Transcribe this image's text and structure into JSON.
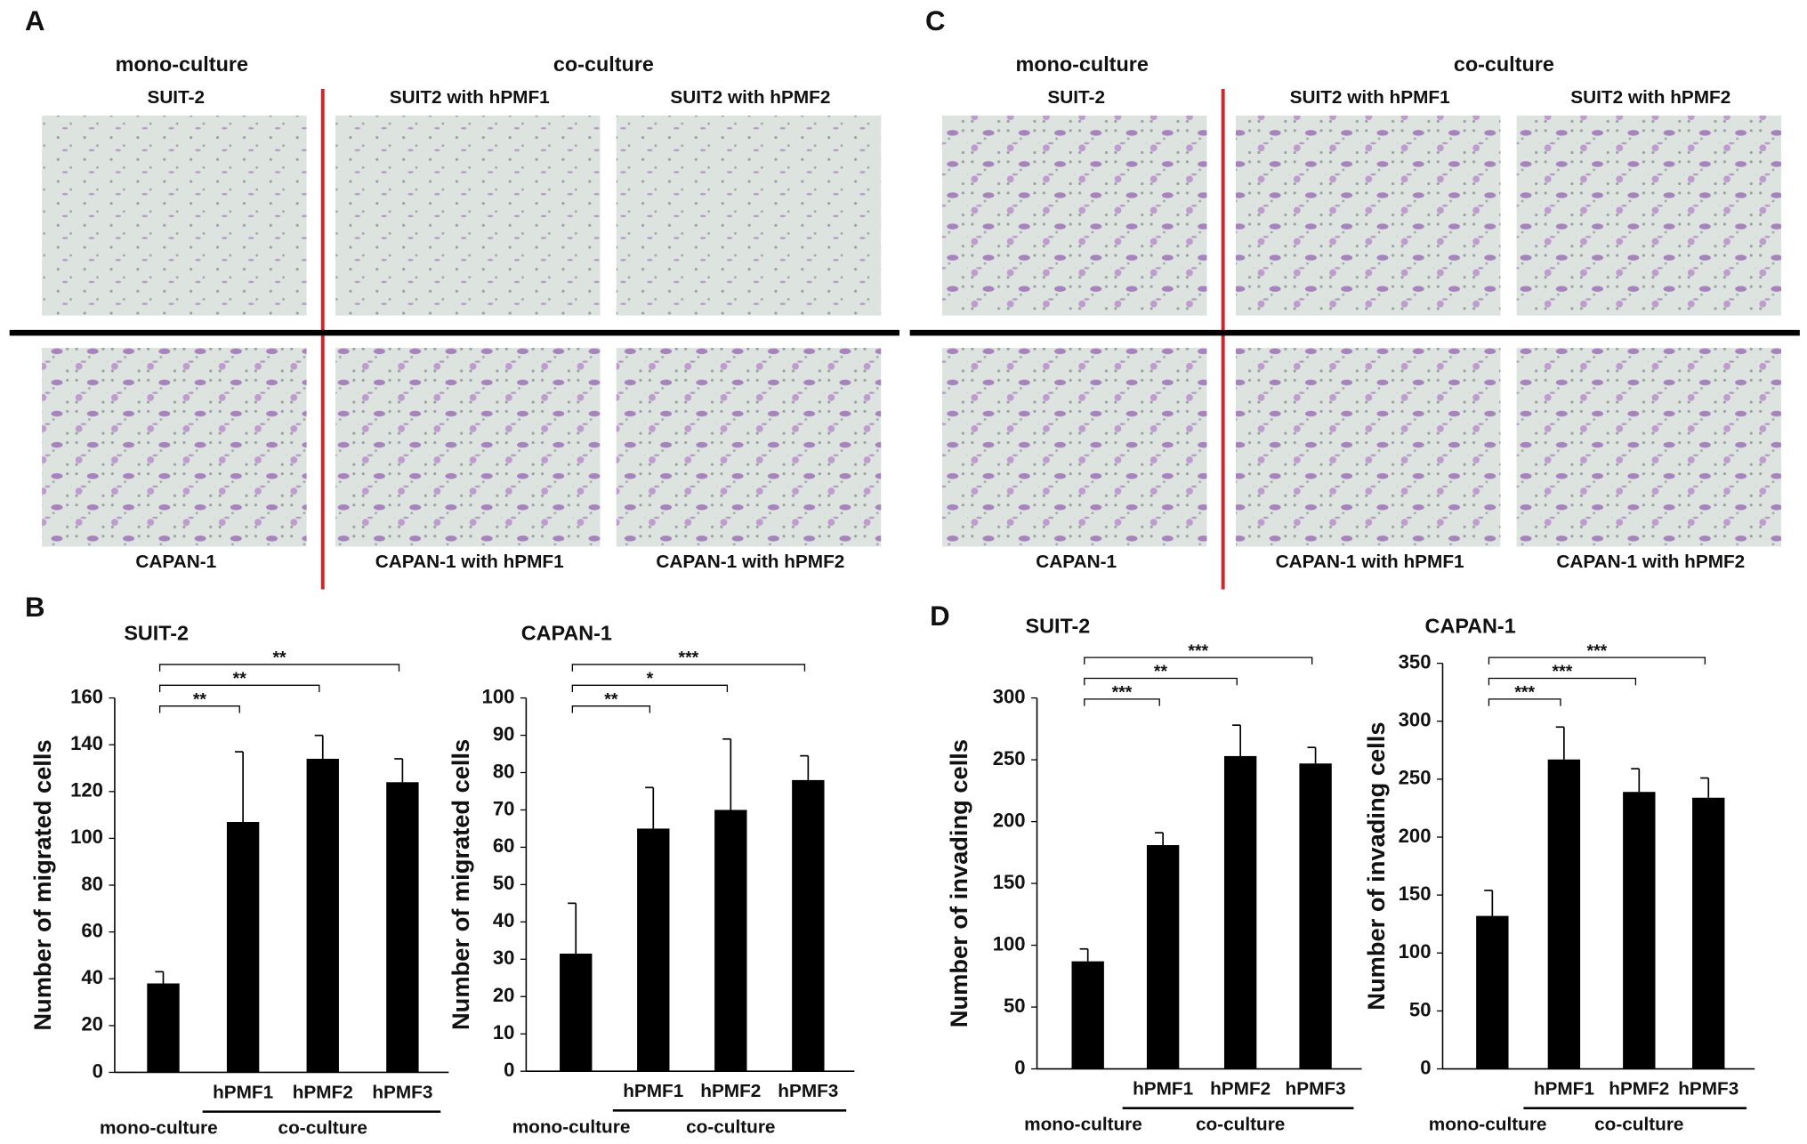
{
  "panels": [
    {
      "letter": "A",
      "headings": [
        "mono-culture",
        "co-culture"
      ],
      "top": [
        "SUIT-2",
        "SUIT2 with hPMF1",
        "SUIT2 with hPMF2"
      ],
      "bottom": [
        "CAPAN-1",
        "CAPAN-1 with hPMF1",
        "CAPAN-1 with hPMF2"
      ]
    },
    {
      "letter": "C",
      "headings": [
        "mono-culture",
        "co-culture"
      ],
      "top": [
        "SUIT-2",
        "SUIT2 with hPMF1",
        "SUIT2 with hPMF2"
      ],
      "bottom": [
        "CAPAN-1",
        "CAPAN-1 with hPMF1",
        "CAPAN-1 with hPMF2"
      ]
    }
  ],
  "chart_panel_letters": [
    "B",
    "D"
  ],
  "chart_data": [
    {
      "type": "bar",
      "title": "SUIT-2",
      "y_label": "Number of migrated cells",
      "categories": [
        null,
        "hPMF1",
        "hPMF2",
        "hPMF3"
      ],
      "groups": [
        "mono-culture",
        "co-culture"
      ],
      "values": [
        38,
        107,
        134,
        124
      ],
      "errors": [
        5,
        30,
        10,
        10
      ],
      "color": "#000000",
      "significance": [
        "**",
        "**",
        "**"
      ],
      "ylim": [
        0,
        160
      ],
      "yticks": [
        0,
        20,
        40,
        60,
        80,
        100,
        120,
        140,
        160
      ]
    },
    {
      "type": "bar",
      "title": "CAPAN-1",
      "y_label": "Number of migrated cells",
      "categories": [
        null,
        "hPMF1",
        "hPMF2",
        "hPMF3"
      ],
      "groups": [
        "mono-culture",
        "co-culture"
      ],
      "values": [
        31.5,
        65,
        70,
        78
      ],
      "errors": [
        13.5,
        11,
        19,
        6.5
      ],
      "color": "#000000",
      "significance": [
        "**",
        "*",
        "***"
      ],
      "ylim": [
        0,
        100
      ],
      "yticks": [
        0,
        10,
        20,
        30,
        40,
        50,
        60,
        70,
        80,
        90,
        100
      ]
    },
    {
      "type": "bar",
      "title": "SUIT-2",
      "y_label": "Number of invading cells",
      "categories": [
        null,
        "hPMF1",
        "hPMF2",
        "hPMF3"
      ],
      "groups": [
        "mono-culture",
        "co-culture"
      ],
      "values": [
        87,
        181,
        253,
        247
      ],
      "errors": [
        10,
        10,
        25,
        13
      ],
      "color": "#000000",
      "significance": [
        "***",
        "**",
        "***"
      ],
      "ylim": [
        0,
        300
      ],
      "yticks": [
        0,
        50,
        100,
        150,
        200,
        250,
        300
      ]
    },
    {
      "type": "bar",
      "title": "CAPAN-1",
      "y_label": "Number of invading cells",
      "categories": [
        null,
        "hPMF1",
        "hPMF2",
        "hPMF3"
      ],
      "groups": [
        "mono-culture",
        "co-culture"
      ],
      "values": [
        132,
        267,
        239,
        234
      ],
      "errors": [
        22,
        28,
        20,
        17
      ],
      "color": "#000000",
      "significance": [
        "***",
        "***",
        "***"
      ],
      "ylim": [
        0,
        350
      ],
      "yticks": [
        0,
        50,
        100,
        150,
        200,
        250,
        300,
        350
      ]
    }
  ]
}
